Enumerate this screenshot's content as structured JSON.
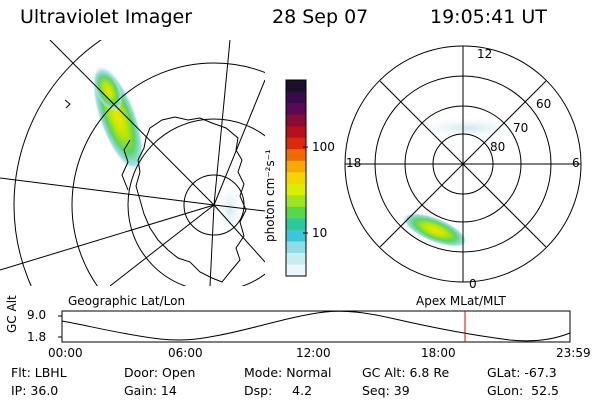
{
  "header": {
    "instrument": "Ultraviolet Imager",
    "date": "28 Sep 07",
    "time": "19:05:41 UT"
  },
  "left_panel": {
    "caption": "Geographic Lat/Lon"
  },
  "right_panel": {
    "caption": "Apex MLat/MLT",
    "mlt_labels": {
      "top": "12",
      "left": "18",
      "right": "6",
      "bottom": "0"
    },
    "lat_labels": [
      "60",
      "70",
      "80"
    ]
  },
  "colorbar": {
    "unit_label": "photon cm⁻²s⁻¹",
    "ticks": [
      "100",
      "10"
    ],
    "colors": [
      "#1b0f2e",
      "#3a0b4a",
      "#5a0a55",
      "#8a0a3a",
      "#b70f1c",
      "#d92a0c",
      "#ef6a05",
      "#f7a900",
      "#f6d400",
      "#d9ee00",
      "#9fe620",
      "#57d84a",
      "#2cc99a",
      "#3ec6d8",
      "#8fdbe8",
      "#c9ecf2",
      "#eaf6f8"
    ]
  },
  "altitude_plot": {
    "ylabel": "GC Alt",
    "yticks": [
      "9.0",
      "1.8"
    ],
    "xticks": [
      "00:00",
      "06:00",
      "12:00",
      "18:00",
      "23:59"
    ],
    "current_time_marker": "19:05",
    "line_color": "#e00000"
  },
  "info": {
    "filter": "Flt: LBHL",
    "ip": "IP: 36.0",
    "door": "Door: Open",
    "gain": "Gain: 14",
    "mode": "Mode: Normal",
    "dsp": "Dsp:     4.2",
    "gc_alt": "GC Alt: 6.8 Re",
    "seq": "Seq: 39",
    "glat": "GLat: -67.3",
    "glon": "GLon:  52.5"
  }
}
